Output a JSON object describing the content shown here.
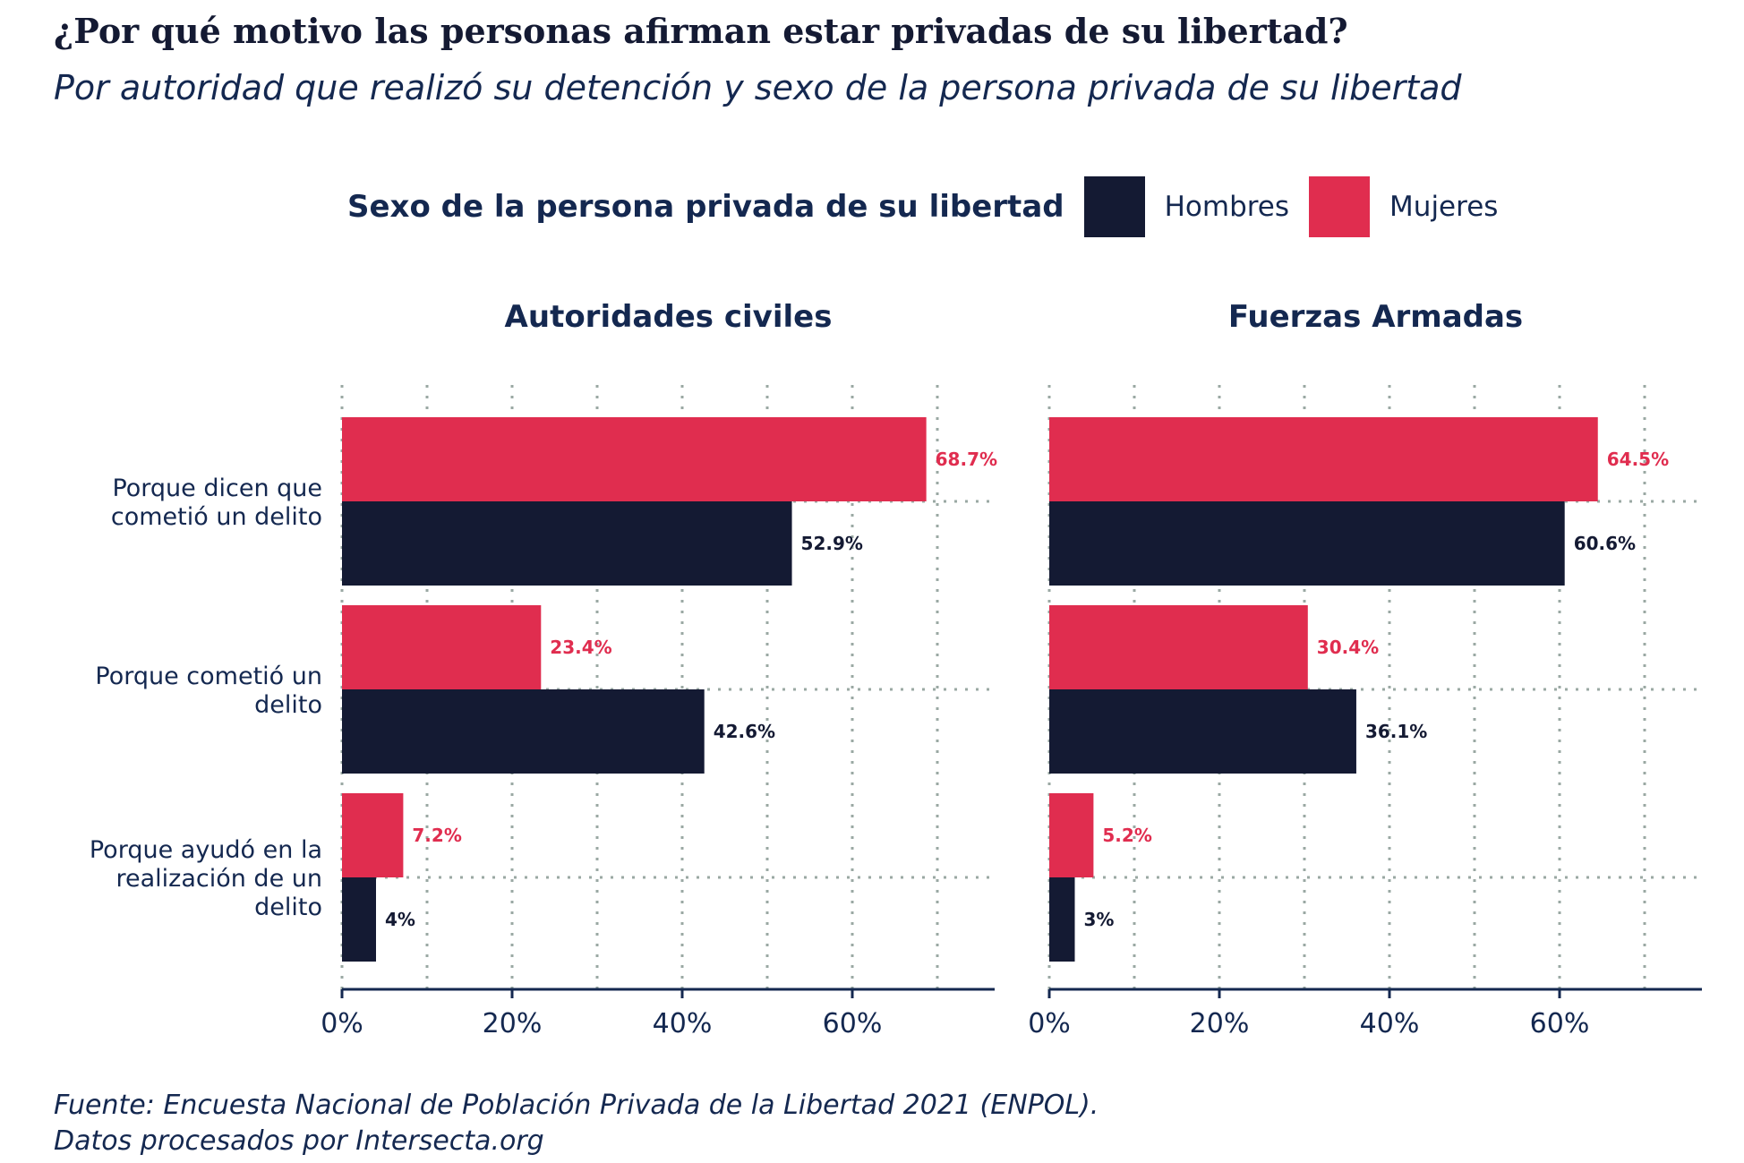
{
  "title": "¿Por qué motivo las personas afirman estar privadas de su libertad?",
  "subtitle": "Por autoridad que realizó su detención y sexo de la persona privada de su libertad",
  "legend": {
    "title": "Sexo de la persona privada de su libertad",
    "items": [
      {
        "label": "Hombres",
        "color": "#141a33"
      },
      {
        "label": "Mujeres",
        "color": "#e02d4f"
      }
    ]
  },
  "footer": {
    "line1": "Fuente: Encuesta Nacional de Población Privada de la Libertad 2021 (ENPOL).",
    "line2": "Datos procesados por Intersecta.org"
  },
  "chart_data": {
    "type": "bar",
    "orientation": "horizontal",
    "grid": true,
    "legend_position": "top",
    "xlim": [
      0,
      77
    ],
    "x_ticks": [
      0,
      20,
      40,
      60
    ],
    "x_tick_labels": [
      "0%",
      "20%",
      "40%",
      "60%"
    ],
    "categories": [
      "Porque dicen que cometió un delito",
      "Porque cometió un delito",
      "Porque ayudó en la realización de un delito"
    ],
    "category_lines": [
      [
        "Porque dicen que",
        "cometió un delito"
      ],
      [
        "Porque cometió un",
        "delito"
      ],
      [
        "Porque ayudó en la",
        "realización de un",
        "delito"
      ]
    ],
    "panels": [
      {
        "title": "Autoridades civiles",
        "series": [
          {
            "name": "Mujeres",
            "color": "#e02d4f",
            "values": [
              68.7,
              23.4,
              7.2
            ],
            "labels": [
              "68.7%",
              "23.4%",
              "7.2%"
            ]
          },
          {
            "name": "Hombres",
            "color": "#141a33",
            "values": [
              52.9,
              42.6,
              4
            ],
            "labels": [
              "52.9%",
              "42.6%",
              "4%"
            ]
          }
        ]
      },
      {
        "title": "Fuerzas Armadas",
        "series": [
          {
            "name": "Mujeres",
            "color": "#e02d4f",
            "values": [
              64.5,
              30.4,
              5.2
            ],
            "labels": [
              "64.5%",
              "30.4%",
              "5.2%"
            ]
          },
          {
            "name": "Hombres",
            "color": "#141a33",
            "values": [
              60.6,
              36.1,
              3
            ],
            "labels": [
              "60.6%",
              "36.1%",
              "3%"
            ]
          }
        ]
      }
    ]
  }
}
